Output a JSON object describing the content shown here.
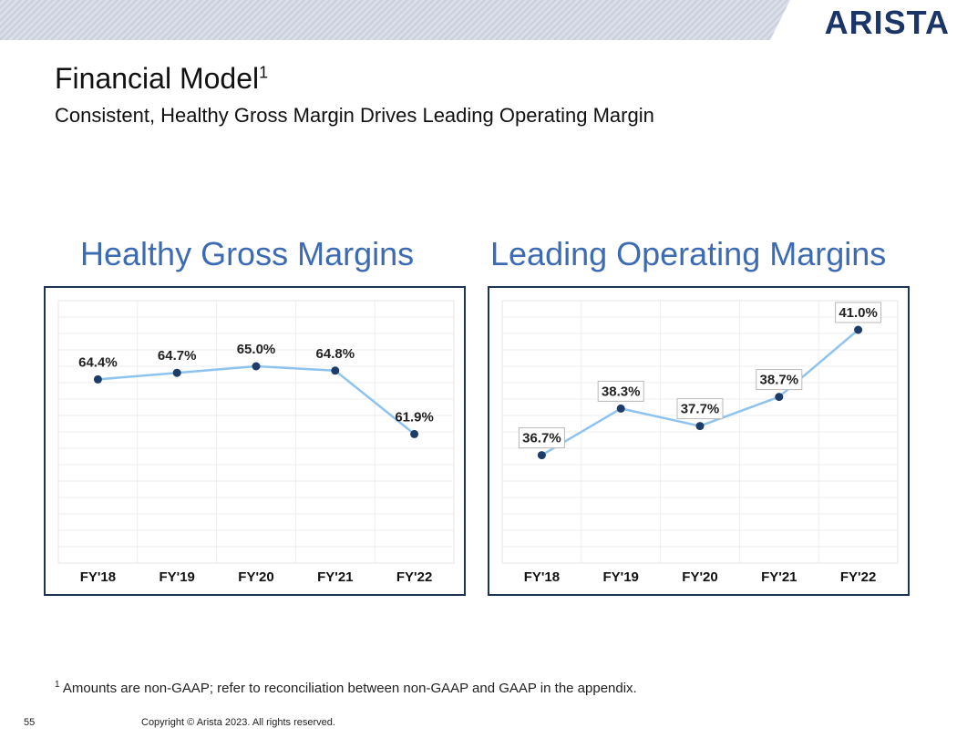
{
  "header": {
    "logo_text": "ARISTA"
  },
  "slide": {
    "title": "Financial Model",
    "title_superscript": "1",
    "subtitle": "Consistent, Healthy Gross Margin Drives Leading Operating Margin"
  },
  "footer": {
    "footnote_marker": "1",
    "footnote_text": "Amounts are non-GAAP; refer to reconciliation between non-GAAP and GAAP in the appendix.",
    "page_number": "55",
    "copyright": "Copyright © Arista 2023. All rights reserved."
  },
  "colors": {
    "heading_blue": "#3d6bb3",
    "line_light_blue": "#8ec3ef",
    "marker_navy": "#1d3d68",
    "frame_navy": "#1d3550",
    "logo_navy": "#1b3566"
  },
  "chart_data": [
    {
      "type": "line",
      "title": "Healthy Gross Margins",
      "categories": [
        "FY'18",
        "FY'19",
        "FY'20",
        "FY'21",
        "FY'22"
      ],
      "values": [
        64.4,
        64.7,
        65.0,
        64.8,
        61.9
      ],
      "data_labels": [
        "64.4%",
        "64.7%",
        "65.0%",
        "64.8%",
        "61.9%"
      ],
      "unit": "%",
      "ylim": [
        56,
        68
      ],
      "grid": true,
      "label_boxes": false
    },
    {
      "type": "line",
      "title": "Leading Operating Margins",
      "categories": [
        "FY'18",
        "FY'19",
        "FY'20",
        "FY'21",
        "FY'22"
      ],
      "values": [
        36.7,
        38.3,
        37.7,
        38.7,
        41.0
      ],
      "data_labels": [
        "36.7%",
        "38.3%",
        "37.7%",
        "38.7%",
        "41.0%"
      ],
      "unit": "%",
      "ylim": [
        33,
        42
      ],
      "grid": true,
      "label_boxes": true
    }
  ]
}
